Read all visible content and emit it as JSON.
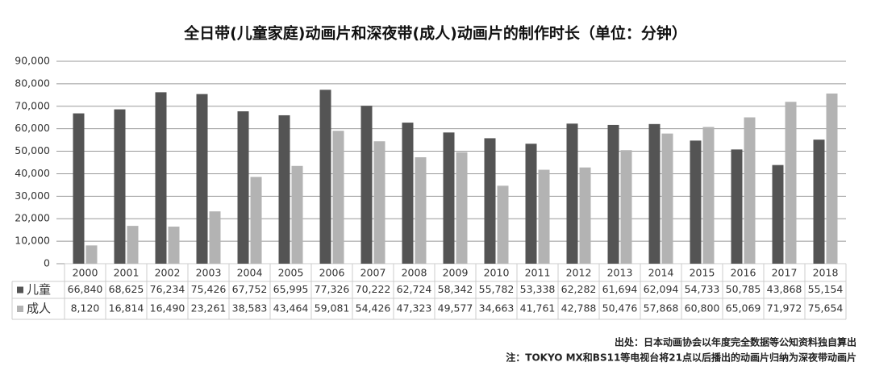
{
  "chart_data": {
    "type": "bar",
    "title": "全日带(儿童家庭)动画片和深夜带(成人)动画片的制作时长（单位：分钟）",
    "categories": [
      "2000",
      "2001",
      "2002",
      "2003",
      "2004",
      "2005",
      "2006",
      "2007",
      "2008",
      "2009",
      "2010",
      "2011",
      "2012",
      "2013",
      "2014",
      "2015",
      "2016",
      "2017",
      "2018"
    ],
    "series": [
      {
        "name": "儿童",
        "color": "#545454",
        "values": [
          66840,
          68625,
          76234,
          75426,
          67752,
          65995,
          77326,
          70222,
          62724,
          58342,
          55782,
          53338,
          62282,
          61694,
          62094,
          54733,
          50785,
          43868,
          55154
        ],
        "value_labels": [
          "66,840",
          "68,625",
          "76,234",
          "75,426",
          "67,752",
          "65,995",
          "77,326",
          "70,222",
          "62,724",
          "58,342",
          "55,782",
          "53,338",
          "62,282",
          "61,694",
          "62,094",
          "54,733",
          "50,785",
          "43,868",
          "55,154"
        ]
      },
      {
        "name": "成人",
        "color": "#b3b3b3",
        "values": [
          8120,
          16814,
          16490,
          23261,
          38583,
          43464,
          59081,
          54426,
          47323,
          49577,
          34663,
          41761,
          42788,
          50476,
          57868,
          60800,
          65069,
          71972,
          75654
        ],
        "value_labels": [
          "8,120",
          "16,814",
          "16,490",
          "23,261",
          "38,583",
          "43,464",
          "59,081",
          "54,426",
          "47,323",
          "49,577",
          "34,663",
          "41,761",
          "42,788",
          "50,476",
          "57,868",
          "60,800",
          "65,069",
          "71,972",
          "75,654"
        ]
      }
    ],
    "ylim": [
      0,
      90000
    ],
    "yticks": [
      0,
      {
        "value": 10000,
        "label": "10,000"
      },
      {
        "value": 20000,
        "label": "20,000"
      },
      {
        "value": 30000,
        "label": "30,000"
      },
      {
        "value": 40000,
        "label": "40,000"
      },
      {
        "value": 50000,
        "label": "50,000"
      },
      {
        "value": 60000,
        "label": "60,000"
      },
      {
        "value": 70000,
        "label": "70,000"
      },
      {
        "value": 80000,
        "label": "80,000"
      },
      {
        "value": 90000,
        "label": "90,000"
      }
    ],
    "grid": true,
    "source": "出处：日本动画协会以年度完全数据等公知资料独自算出",
    "note": "注：TOKYO MX和BS11等电视台将21点以后播出的动画片归纳为深夜带动画片"
  }
}
